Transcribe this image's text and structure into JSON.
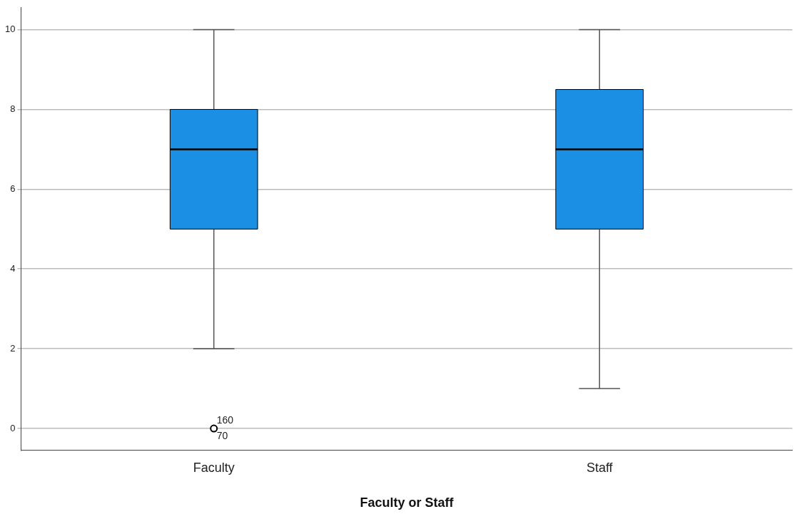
{
  "chart_data": {
    "type": "box",
    "xlabel": "Faculty or Staff",
    "categories": [
      "Faculty",
      "Staff"
    ],
    "color": "#1a8fe3",
    "boxes": [
      {
        "low": 2,
        "q1": 5,
        "median": 7,
        "q3": 8,
        "high": 10,
        "outliers": [
          0
        ]
      },
      {
        "low": 1,
        "q1": 5,
        "median": 7,
        "q3": 8.5,
        "high": 10
      }
    ],
    "ylim": [
      -0.55,
      10.55
    ],
    "yticks": [
      0,
      2,
      4,
      6,
      8,
      10
    ],
    "grid": "y",
    "annotations": [
      "160",
      "70"
    ]
  }
}
